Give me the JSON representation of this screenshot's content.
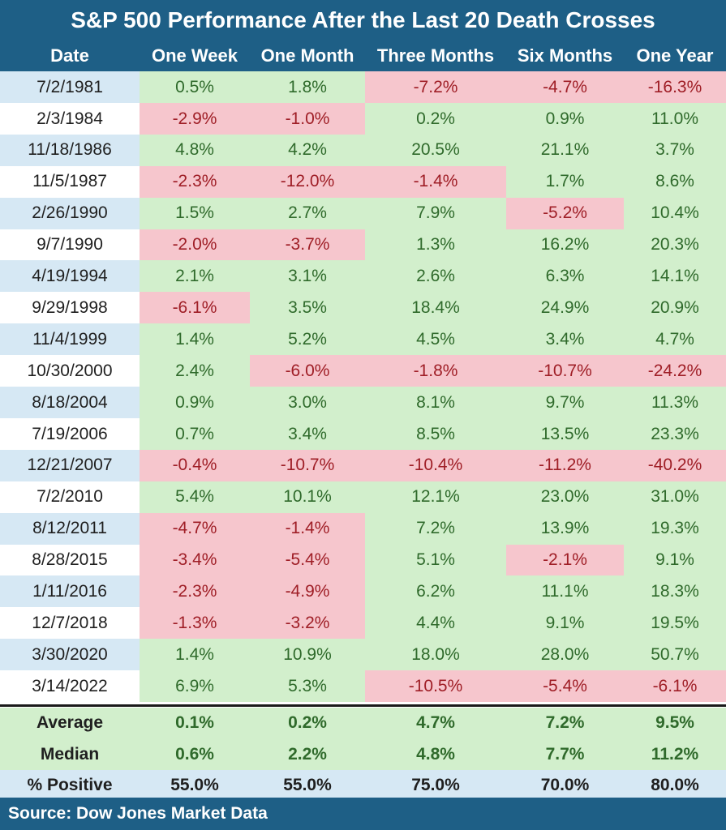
{
  "title": "S&P 500 Performance After the Last 20 Death Crosses",
  "source": "Source: Dow Jones Market Data",
  "colors": {
    "header_bg": "#1e5f86",
    "positive_bg": "#d2efcc",
    "positive_text": "#2f6a2b",
    "negative_bg": "#f6c6cd",
    "negative_text": "#9f1e26",
    "date_band": "#d6e8f4"
  },
  "chart_data": {
    "type": "table",
    "title": "S&P 500 Performance After the Last 20 Death Crosses",
    "columns": [
      "Date",
      "One Week",
      "One Month",
      "Three Months",
      "Six Months",
      "One Year"
    ],
    "rows": [
      {
        "date": "7/2/1981",
        "values": [
          "0.5%",
          "1.8%",
          "-7.2%",
          "-4.7%",
          "-16.3%"
        ]
      },
      {
        "date": "2/3/1984",
        "values": [
          "-2.9%",
          "-1.0%",
          "0.2%",
          "0.9%",
          "11.0%"
        ]
      },
      {
        "date": "11/18/1986",
        "values": [
          "4.8%",
          "4.2%",
          "20.5%",
          "21.1%",
          "3.7%"
        ]
      },
      {
        "date": "11/5/1987",
        "values": [
          "-2.3%",
          "-12.0%",
          "-1.4%",
          "1.7%",
          "8.6%"
        ]
      },
      {
        "date": "2/26/1990",
        "values": [
          "1.5%",
          "2.7%",
          "7.9%",
          "-5.2%",
          "10.4%"
        ]
      },
      {
        "date": "9/7/1990",
        "values": [
          "-2.0%",
          "-3.7%",
          "1.3%",
          "16.2%",
          "20.3%"
        ]
      },
      {
        "date": "4/19/1994",
        "values": [
          "2.1%",
          "3.1%",
          "2.6%",
          "6.3%",
          "14.1%"
        ]
      },
      {
        "date": "9/29/1998",
        "values": [
          "-6.1%",
          "3.5%",
          "18.4%",
          "24.9%",
          "20.9%"
        ]
      },
      {
        "date": "11/4/1999",
        "values": [
          "1.4%",
          "5.2%",
          "4.5%",
          "3.4%",
          "4.7%"
        ]
      },
      {
        "date": "10/30/2000",
        "values": [
          "2.4%",
          "-6.0%",
          "-1.8%",
          "-10.7%",
          "-24.2%"
        ]
      },
      {
        "date": "8/18/2004",
        "values": [
          "0.9%",
          "3.0%",
          "8.1%",
          "9.7%",
          "11.3%"
        ]
      },
      {
        "date": "7/19/2006",
        "values": [
          "0.7%",
          "3.4%",
          "8.5%",
          "13.5%",
          "23.3%"
        ]
      },
      {
        "date": "12/21/2007",
        "values": [
          "-0.4%",
          "-10.7%",
          "-10.4%",
          "-11.2%",
          "-40.2%"
        ]
      },
      {
        "date": "7/2/2010",
        "values": [
          "5.4%",
          "10.1%",
          "12.1%",
          "23.0%",
          "31.0%"
        ]
      },
      {
        "date": "8/12/2011",
        "values": [
          "-4.7%",
          "-1.4%",
          "7.2%",
          "13.9%",
          "19.3%"
        ]
      },
      {
        "date": "8/28/2015",
        "values": [
          "-3.4%",
          "-5.4%",
          "5.1%",
          "-2.1%",
          "9.1%"
        ]
      },
      {
        "date": "1/11/2016",
        "values": [
          "-2.3%",
          "-4.9%",
          "6.2%",
          "11.1%",
          "18.3%"
        ]
      },
      {
        "date": "12/7/2018",
        "values": [
          "-1.3%",
          "-3.2%",
          "4.4%",
          "9.1%",
          "19.5%"
        ]
      },
      {
        "date": "3/30/2020",
        "values": [
          "1.4%",
          "10.9%",
          "18.0%",
          "28.0%",
          "50.7%"
        ]
      },
      {
        "date": "3/14/2022",
        "values": [
          "6.9%",
          "5.3%",
          "-10.5%",
          "-5.4%",
          "-6.1%"
        ]
      }
    ],
    "summary": [
      {
        "label": "Average",
        "values": [
          "0.1%",
          "0.2%",
          "4.7%",
          "7.2%",
          "9.5%"
        ]
      },
      {
        "label": "Median",
        "values": [
          "0.6%",
          "2.2%",
          "4.8%",
          "7.7%",
          "11.2%"
        ]
      },
      {
        "label": "% Positive",
        "values": [
          "55.0%",
          "55.0%",
          "75.0%",
          "70.0%",
          "80.0%"
        ]
      }
    ]
  }
}
